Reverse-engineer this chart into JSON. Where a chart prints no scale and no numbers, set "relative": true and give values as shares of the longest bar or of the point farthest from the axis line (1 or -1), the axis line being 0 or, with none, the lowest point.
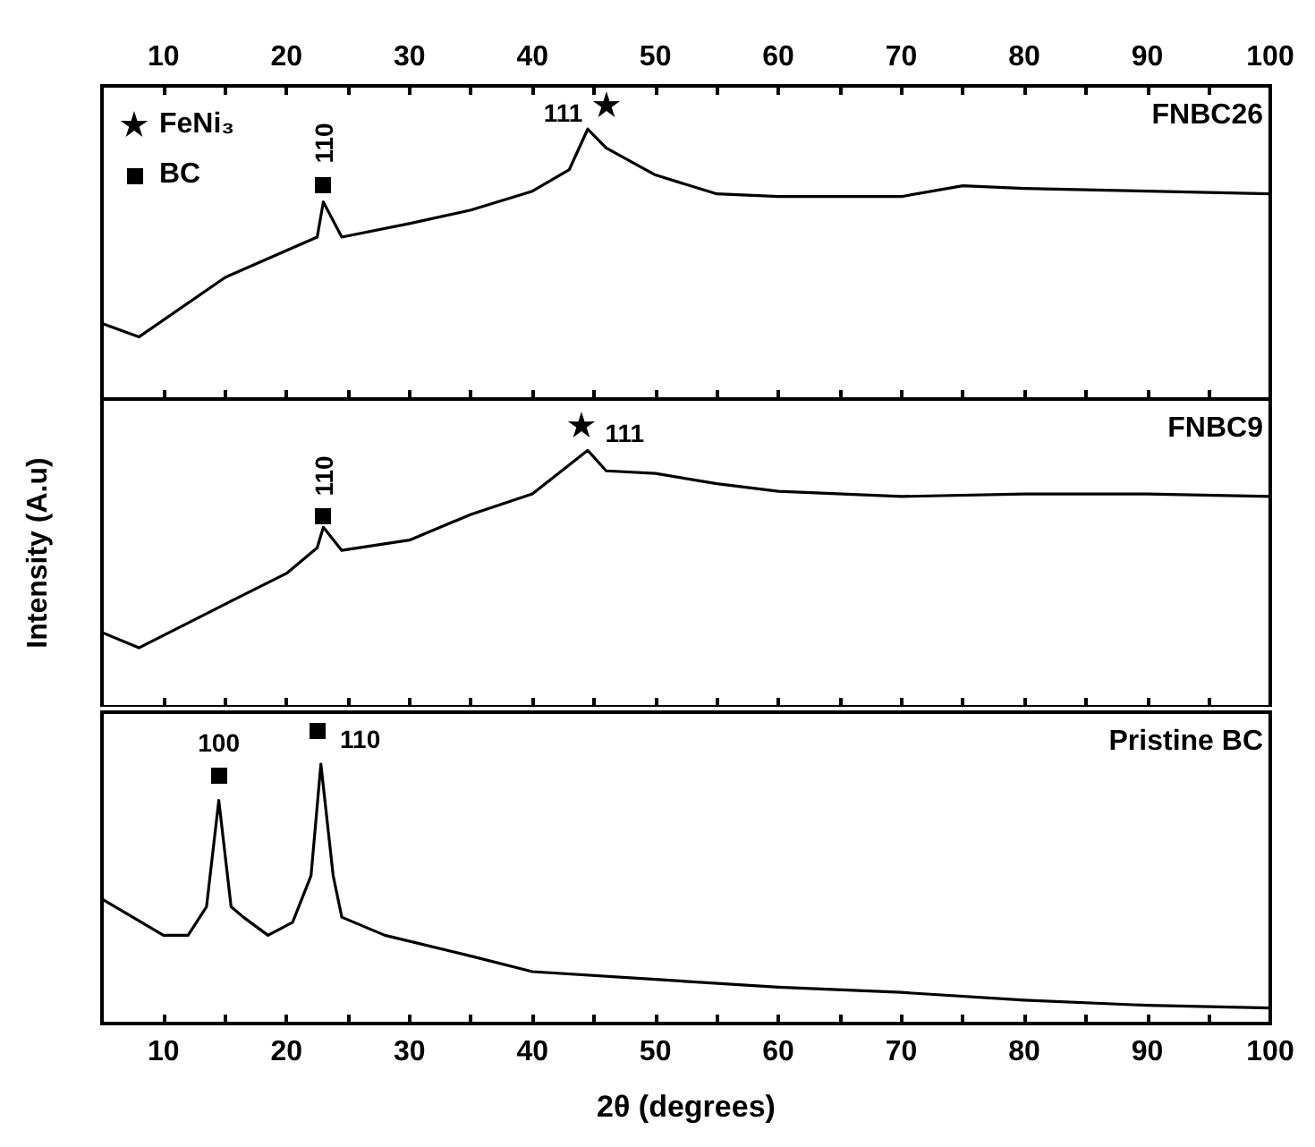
{
  "chart_data": [
    {
      "type": "line",
      "relative": true,
      "xlim": [
        5,
        100
      ],
      "x2lim": [
        5,
        100
      ],
      "tick_labels": false,
      "xticks": [
        {
          "value": 10,
          "label": null
        },
        {
          "value": 15,
          "label": null
        },
        {
          "value": 20,
          "label": null
        },
        {
          "value": 25,
          "label": null
        },
        {
          "value": 30,
          "label": null
        },
        {
          "value": 35,
          "label": null
        },
        {
          "value": 40,
          "label": null
        },
        {
          "value": 45,
          "label": null
        },
        {
          "value": 50,
          "label": null
        },
        {
          "value": 55,
          "label": null
        },
        {
          "value": 60,
          "label": null
        },
        {
          "value": 65,
          "label": null
        },
        {
          "value": 70,
          "label": null
        },
        {
          "value": 75,
          "label": null
        },
        {
          "value": 80,
          "label": null
        },
        {
          "value": 85,
          "label": null
        },
        {
          "value": 90,
          "label": null
        },
        {
          "value": 95,
          "label": null
        },
        {
          "value": 100,
          "label": null
        }
      ],
      "x2ticks": [
        10,
        {
          "value": 15,
          "label": null
        },
        20,
        {
          "value": 25,
          "label": null
        },
        30,
        {
          "value": 35,
          "label": null
        },
        40,
        {
          "value": 45,
          "label": null
        },
        50,
        {
          "value": 55,
          "label": null
        },
        60,
        {
          "value": 65,
          "label": null
        },
        70,
        {
          "value": 75,
          "label": null
        },
        80,
        {
          "value": 85,
          "label": null
        },
        90,
        {
          "value": 95,
          "label": null
        },
        100
      ],
      "series": [
        {
          "name": "FNBC26",
          "color": "#000000",
          "x": [
            5,
            8,
            15,
            20,
            22.5,
            23,
            24.5,
            30,
            35,
            40,
            43,
            44.5,
            46,
            50,
            55,
            60,
            70,
            75,
            80,
            90,
            100
          ],
          "values": [
            0.28,
            0.23,
            0.45,
            0.55,
            0.6,
            0.73,
            0.6,
            0.65,
            0.7,
            0.77,
            0.85,
            1,
            0.93,
            0.83,
            0.76,
            0.75,
            0.75,
            0.79,
            0.78,
            0.77,
            0.76
          ]
        }
      ],
      "annotations": [
        "FeNi₃",
        "BC",
        "110",
        "111"
      ]
    },
    {
      "type": "line",
      "relative": true,
      "xlim": [
        5,
        100
      ],
      "tick_labels": false,
      "ylabel": "Intensity (A.u)",
      "xticks": [
        {
          "value": 10,
          "label": null
        },
        {
          "value": 15,
          "label": null
        },
        {
          "value": 20,
          "label": null
        },
        {
          "value": 25,
          "label": null
        },
        {
          "value": 30,
          "label": null
        },
        {
          "value": 35,
          "label": null
        },
        {
          "value": 40,
          "label": null
        },
        {
          "value": 45,
          "label": null
        },
        {
          "value": 50,
          "label": null
        },
        {
          "value": 55,
          "label": null
        },
        {
          "value": 60,
          "label": null
        },
        {
          "value": 65,
          "label": null
        },
        {
          "value": 70,
          "label": null
        },
        {
          "value": 75,
          "label": null
        },
        {
          "value": 80,
          "label": null
        },
        {
          "value": 85,
          "label": null
        },
        {
          "value": 90,
          "label": null
        },
        {
          "value": 95,
          "label": null
        },
        {
          "value": 100,
          "label": null
        }
      ],
      "series": [
        {
          "name": "FNBC9",
          "color": "#000000",
          "x": [
            5,
            8,
            15,
            20,
            22.5,
            23,
            24.5,
            30,
            35,
            40,
            44.5,
            46,
            50,
            55,
            60,
            70,
            80,
            90,
            100
          ],
          "values": [
            0.29,
            0.23,
            0.4,
            0.52,
            0.62,
            0.7,
            0.61,
            0.65,
            0.75,
            0.83,
            1,
            0.92,
            0.91,
            0.87,
            0.84,
            0.82,
            0.83,
            0.83,
            0.82
          ]
        }
      ],
      "annotations": [
        "110",
        "111"
      ]
    },
    {
      "type": "line",
      "relative": true,
      "xlim": [
        5,
        100
      ],
      "tick_labels": "x",
      "xlabel": "2θ (degrees)",
      "xticks": [
        10,
        {
          "value": 15,
          "label": null
        },
        20,
        {
          "value": 25,
          "label": null
        },
        30,
        {
          "value": 35,
          "label": null
        },
        40,
        {
          "value": 45,
          "label": null
        },
        50,
        {
          "value": 55,
          "label": null
        },
        60,
        {
          "value": 65,
          "label": null
        },
        70,
        {
          "value": 75,
          "label": null
        },
        80,
        {
          "value": 85,
          "label": null
        },
        90,
        {
          "value": 95,
          "label": null
        },
        100
      ],
      "series": [
        {
          "name": "Pristine BC",
          "color": "#000000",
          "x": [
            5,
            10,
            12,
            13.5,
            14.5,
            15.5,
            16.5,
            18.5,
            20.5,
            22,
            22.8,
            23.8,
            24.5,
            28,
            35,
            40,
            50,
            60,
            70,
            80,
            90,
            100
          ],
          "values": [
            0.48,
            0.34,
            0.34,
            0.45,
            0.86,
            0.45,
            0.41,
            0.34,
            0.39,
            0.57,
            1,
            0.57,
            0.41,
            0.34,
            0.26,
            0.2,
            0.17,
            0.14,
            0.12,
            0.09,
            0.07,
            0.06
          ]
        }
      ],
      "annotations": [
        "100",
        "110"
      ]
    }
  ]
}
